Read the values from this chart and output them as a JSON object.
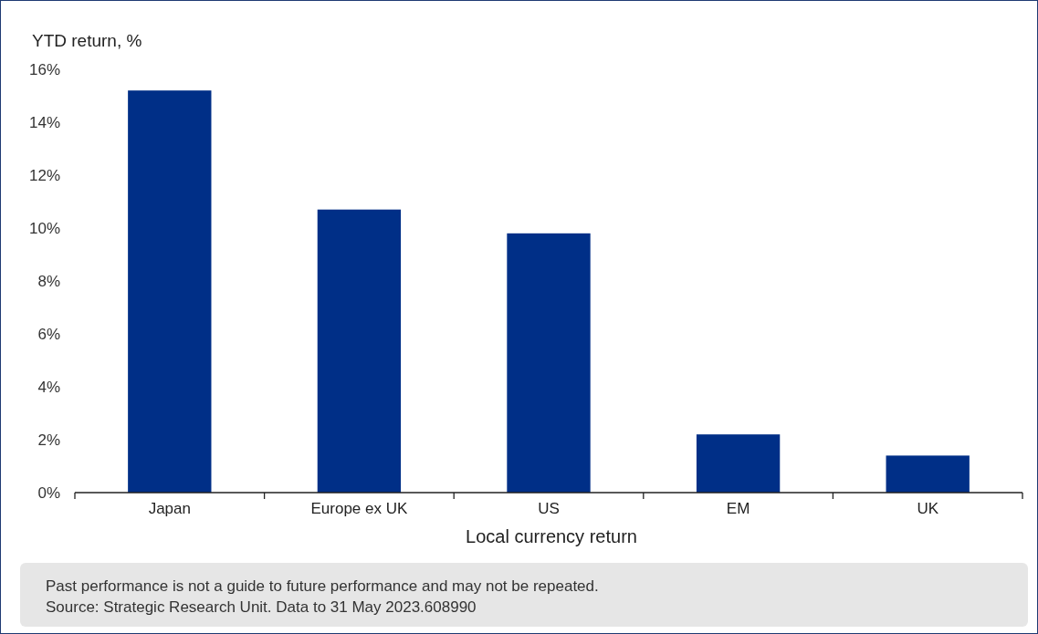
{
  "chart_data": {
    "type": "bar",
    "ylabel": "YTD return, %",
    "xlabel": "Local currency return",
    "categories": [
      "Japan",
      "Europe ex UK",
      "US",
      "EM",
      "UK"
    ],
    "values": [
      15.2,
      10.7,
      9.8,
      2.2,
      1.4
    ],
    "color": "#002f87",
    "ylim": [
      0,
      16
    ],
    "yticks": [
      {
        "value": 0,
        "label": "0%"
      },
      {
        "value": 2,
        "label": "2%"
      },
      {
        "value": 4,
        "label": "4%"
      },
      {
        "value": 6,
        "label": "6%"
      },
      {
        "value": 8,
        "label": "8%"
      },
      {
        "value": 10,
        "label": "10%"
      },
      {
        "value": 12,
        "label": "12%"
      },
      {
        "value": 14,
        "label": "14%"
      },
      {
        "value": 16,
        "label": "16%"
      }
    ],
    "grid": false,
    "annotations": [
      "Past performance is not a guide to future performance and may not be repeated.",
      "Source: Strategic Research Unit. Data to 31 May 2023.608990"
    ]
  }
}
